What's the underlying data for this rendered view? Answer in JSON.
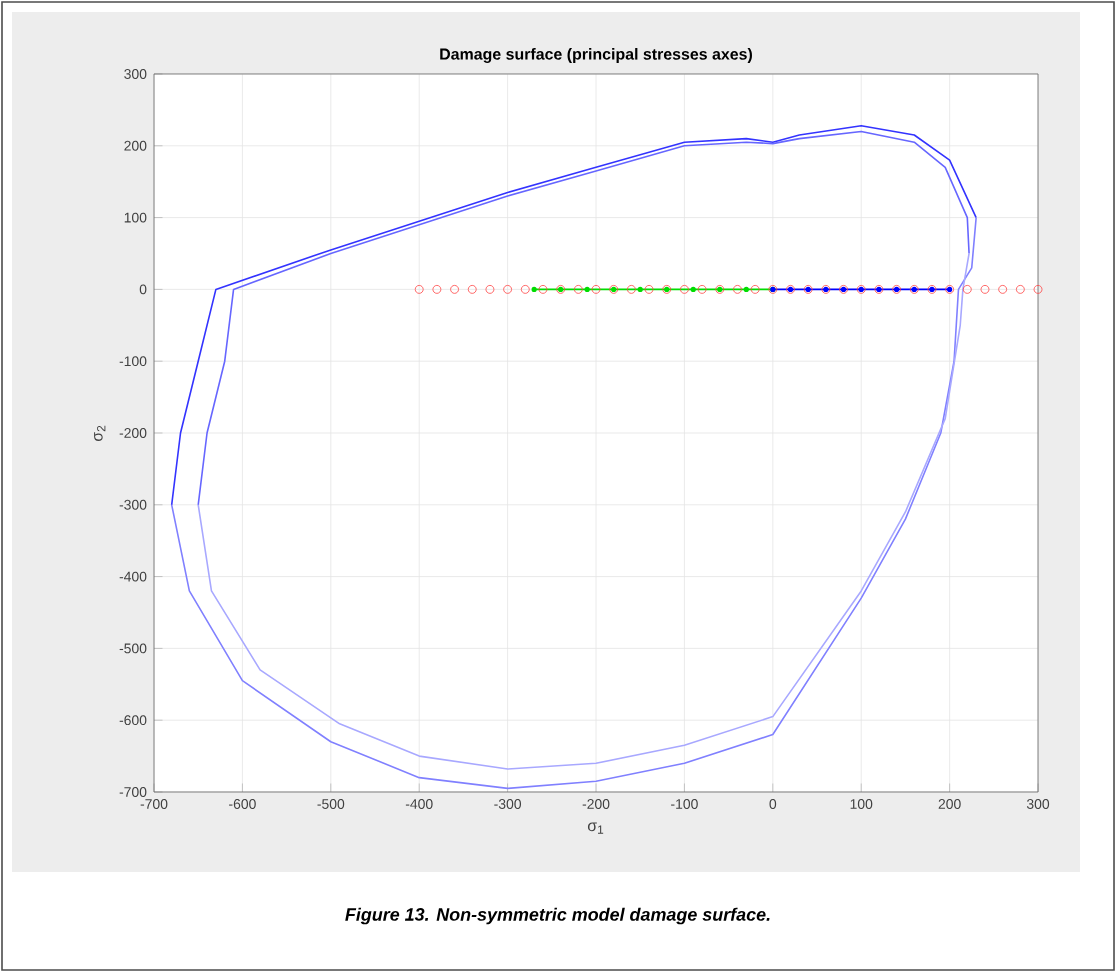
{
  "chart_data": {
    "type": "line",
    "title": "Damage surface (principal stresses axes)",
    "xlabel": "σ$_{1}$",
    "ylabel": "σ$_{2}$",
    "xlim": [
      -700,
      300
    ],
    "ylim": [
      -700,
      300
    ],
    "xticks": [
      -700,
      -600,
      -500,
      -400,
      -300,
      -200,
      -100,
      0,
      100,
      200,
      300
    ],
    "yticks": [
      -700,
      -600,
      -500,
      -400,
      -300,
      -200,
      -100,
      0,
      100,
      200,
      300
    ],
    "grid": true,
    "annotations": [
      "**Figure 13. Non-symmetric model damage surface.**"
    ],
    "series": [
      {
        "color": "#3333ff",
        "x": [
          -680,
          -670,
          -650,
          -630,
          -500,
          -400,
          -300,
          -200,
          -100,
          -30,
          0,
          30,
          100,
          160,
          200,
          230
        ],
        "values": [
          -300,
          -200,
          -100,
          0,
          55,
          95,
          135,
          170,
          205,
          210,
          205,
          215,
          228,
          215,
          180,
          100
        ]
      },
      {
        "color": "#8080ff",
        "x": [
          -680,
          -660,
          -600,
          -500,
          -400,
          -300,
          -200,
          -100,
          0,
          100,
          150,
          190,
          205,
          210,
          225,
          230
        ],
        "values": [
          -300,
          -420,
          -545,
          -630,
          -680,
          -695,
          -685,
          -660,
          -620,
          -430,
          -320,
          -200,
          -100,
          0,
          30,
          100
        ]
      },
      {
        "color": "#6666ff",
        "x": [
          -650,
          -640,
          -620,
          -610,
          -500,
          -400,
          -300,
          -200,
          -100,
          -30,
          0,
          30,
          100,
          160,
          195,
          220,
          222
        ],
        "values": [
          -300,
          -200,
          -100,
          0,
          50,
          90,
          130,
          165,
          200,
          205,
          203,
          210,
          220,
          205,
          170,
          100,
          50
        ]
      },
      {
        "color": "#a8a8ff",
        "x": [
          -650,
          -635,
          -580,
          -490,
          -400,
          -300,
          -200,
          -100,
          0,
          100,
          150,
          195,
          212,
          215,
          222
        ],
        "values": [
          -300,
          -420,
          -530,
          -605,
          -650,
          -668,
          -660,
          -635,
          -595,
          -420,
          -310,
          -180,
          -50,
          0,
          50
        ]
      },
      {
        "type": "scatter",
        "marker": "circle",
        "color": "#ff4444",
        "x": [
          -400,
          -380,
          -360,
          -340,
          -320,
          -300,
          -280,
          -260,
          -240,
          -220,
          -200,
          -180,
          -160,
          -140,
          -120,
          -100,
          -80,
          -60,
          -40,
          -20,
          0,
          20,
          40,
          60,
          80,
          100,
          120,
          140,
          160,
          180,
          200,
          220,
          240,
          260,
          280,
          300
        ],
        "values": [
          0,
          0,
          0,
          0,
          0,
          0,
          0,
          0,
          0,
          0,
          0,
          0,
          0,
          0,
          0,
          0,
          0,
          0,
          0,
          0,
          0,
          0,
          0,
          0,
          0,
          0,
          0,
          0,
          0,
          0,
          0,
          0,
          0,
          0,
          0,
          0
        ]
      },
      {
        "marker": "circle",
        "color": "#00dd00",
        "x": [
          -270,
          -240,
          -210,
          -180,
          -150,
          -120,
          -90,
          -60,
          -30,
          0
        ],
        "values": [
          0,
          0,
          0,
          0,
          0,
          0,
          0,
          0,
          0,
          0
        ]
      },
      {
        "marker": "circle",
        "color": "#0000ff",
        "x": [
          0,
          20,
          40,
          60,
          80,
          100,
          120,
          140,
          160,
          180,
          200
        ],
        "values": [
          0,
          0,
          0,
          0,
          0,
          0,
          0,
          0,
          0,
          0,
          0
        ]
      }
    ]
  }
}
